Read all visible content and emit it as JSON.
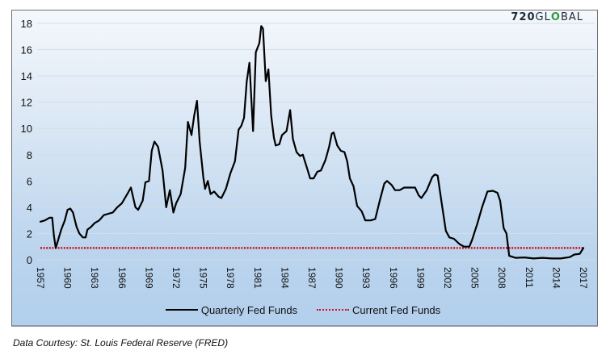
{
  "logo": {
    "text_bold": "720",
    "text_rest": "GL",
    "text_o": "O",
    "text_end": "BAL",
    "full": "720GLOBAL",
    "accent": "#2e9a3e"
  },
  "footer": {
    "source": "Data Courtesy: St. Louis Federal Reserve (FRED)"
  },
  "colors": {
    "quarterly": "#000000",
    "current": "#d0101a"
  },
  "chart_data": {
    "type": "line",
    "title": "",
    "xlabel": "",
    "ylabel": "",
    "xlim": [
      1957,
      2017
    ],
    "ylim": [
      0,
      18
    ],
    "yticks": [
      "0",
      "2",
      "4",
      "6",
      "8",
      "10",
      "12",
      "14",
      "16",
      "18"
    ],
    "xticks": [
      "1957",
      "1960",
      "1963",
      "1966",
      "1969",
      "1972",
      "1975",
      "1978",
      "1981",
      "1984",
      "1987",
      "1990",
      "1993",
      "1996",
      "1999",
      "2002",
      "2005",
      "2008",
      "2011",
      "2014",
      "2017"
    ],
    "grid": true,
    "legend_position": "bottom",
    "series": [
      {
        "name": "Quarterly Fed Funds",
        "style": "solid",
        "x": [
          1957,
          1957.5,
          1958,
          1958.3,
          1958.5,
          1958.7,
          1959,
          1959.3,
          1959.7,
          1960,
          1960.3,
          1960.6,
          1961,
          1961.3,
          1961.7,
          1962,
          1962.2,
          1962.6,
          1963,
          1963.5,
          1964,
          1964.5,
          1965,
          1965.5,
          1966,
          1966.6,
          1967,
          1967.5,
          1967.8,
          1968.3,
          1968.6,
          1969,
          1969.3,
          1969.6,
          1970,
          1970.5,
          1970.9,
          1971.3,
          1971.7,
          1972,
          1972.5,
          1973,
          1973.3,
          1973.7,
          1974,
          1974.3,
          1974.6,
          1975,
          1975.2,
          1975.5,
          1975.8,
          1976.2,
          1976.7,
          1977,
          1977.5,
          1978,
          1978.5,
          1978.9,
          1979.2,
          1979.5,
          1979.8,
          1980.1,
          1980.5,
          1980.8,
          1981.2,
          1981.4,
          1981.6,
          1981.9,
          1982.2,
          1982.5,
          1982.8,
          1983,
          1983.4,
          1983.7,
          1984.2,
          1984.6,
          1984.9,
          1985.3,
          1985.7,
          1986,
          1986.5,
          1986.8,
          1987.2,
          1987.6,
          1988,
          1988.5,
          1988.9,
          1989.2,
          1989.4,
          1989.8,
          1990.2,
          1990.6,
          1990.9,
          1991.2,
          1991.6,
          1992,
          1992.5,
          1992.9,
          1993.5,
          1994,
          1994.5,
          1995,
          1995.3,
          1995.8,
          1996.2,
          1996.7,
          1997.2,
          1997.7,
          1998.4,
          1998.8,
          1999.1,
          1999.7,
          2000.3,
          2000.6,
          2000.9,
          2001.3,
          2001.8,
          2002.2,
          2002.7,
          2003.3,
          2003.8,
          2004.4,
          2004.7,
          2005.3,
          2005.8,
          2006.4,
          2007,
          2007.5,
          2007.8,
          2008.2,
          2008.5,
          2008.8,
          2009.5,
          2010.5,
          2011.5,
          2012.5,
          2013.5,
          2014.5,
          2015.5,
          2016,
          2016.6,
          2017
        ],
        "values": [
          2.9,
          3.0,
          3.2,
          3.2,
          1.8,
          0.9,
          1.6,
          2.3,
          3.0,
          3.8,
          3.9,
          3.6,
          2.5,
          2.0,
          1.7,
          1.7,
          2.3,
          2.5,
          2.8,
          3.0,
          3.4,
          3.5,
          3.6,
          4.0,
          4.3,
          5.0,
          5.5,
          4.0,
          3.8,
          4.5,
          5.9,
          6.0,
          8.3,
          9.0,
          8.6,
          6.8,
          4.0,
          5.3,
          3.6,
          4.3,
          5.0,
          7.0,
          10.5,
          9.5,
          11.0,
          12.1,
          9.0,
          6.3,
          5.4,
          6.0,
          5.0,
          5.2,
          4.8,
          4.7,
          5.4,
          6.6,
          7.5,
          9.9,
          10.2,
          10.8,
          13.6,
          15.0,
          9.8,
          15.8,
          16.5,
          17.8,
          17.6,
          13.6,
          14.5,
          11.0,
          9.3,
          8.7,
          8.8,
          9.5,
          9.8,
          11.4,
          9.2,
          8.2,
          7.9,
          8.0,
          6.9,
          6.2,
          6.2,
          6.7,
          6.8,
          7.6,
          8.6,
          9.6,
          9.7,
          8.7,
          8.3,
          8.2,
          7.5,
          6.2,
          5.6,
          4.1,
          3.7,
          3.0,
          3.0,
          3.1,
          4.5,
          5.8,
          6.0,
          5.7,
          5.3,
          5.3,
          5.5,
          5.5,
          5.5,
          4.9,
          4.7,
          5.3,
          6.3,
          6.5,
          6.4,
          4.5,
          2.2,
          1.7,
          1.6,
          1.2,
          1.0,
          1.0,
          1.5,
          2.8,
          4.0,
          5.2,
          5.25,
          5.1,
          4.5,
          2.4,
          2.0,
          0.3,
          0.15,
          0.18,
          0.1,
          0.15,
          0.1,
          0.1,
          0.2,
          0.4,
          0.45,
          0.9
        ]
      },
      {
        "name": "Current Fed Funds",
        "style": "dotted",
        "x": [
          1957,
          2017
        ],
        "values": [
          0.9,
          0.9
        ]
      }
    ]
  }
}
